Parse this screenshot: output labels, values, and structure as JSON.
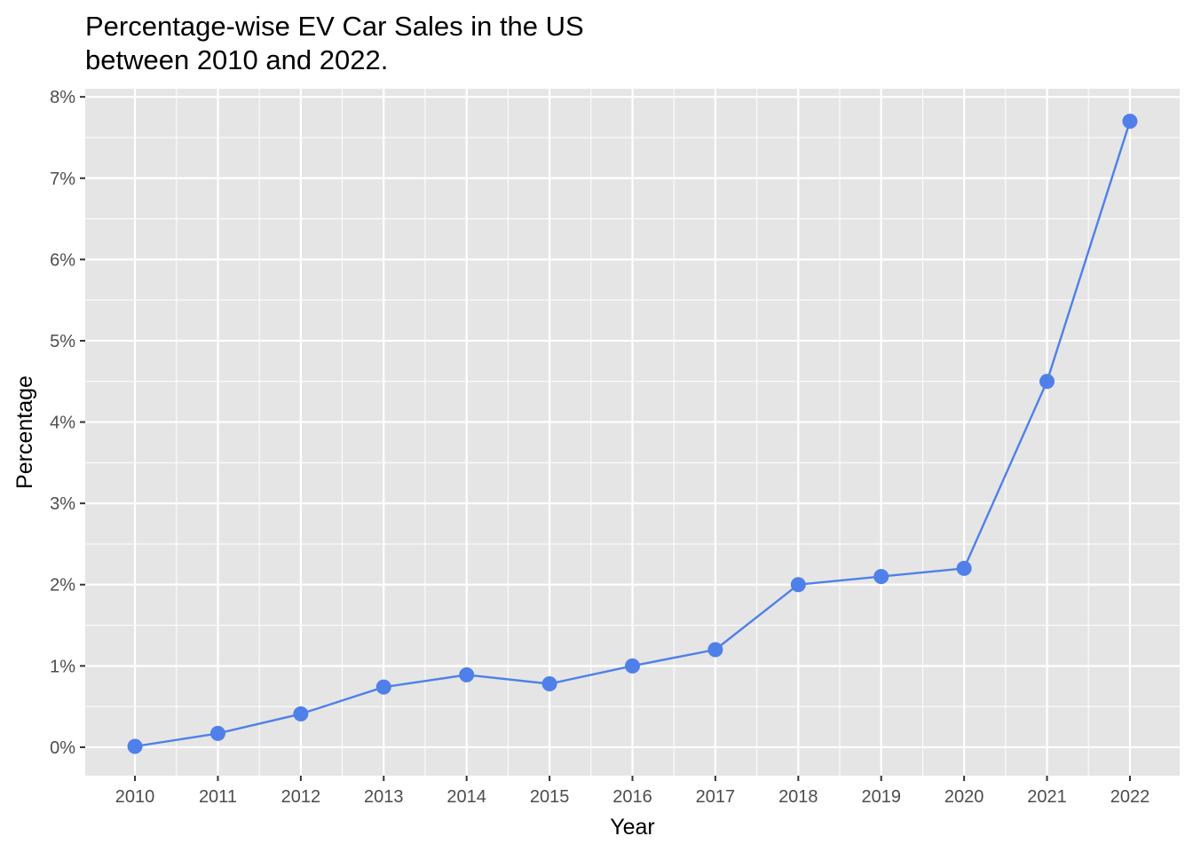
{
  "chart_data": {
    "type": "line",
    "title_lines": [
      "Percentage-wise EV Car Sales in the US",
      "between 2010 and 2022."
    ],
    "xlabel": "Year",
    "ylabel": "Percentage",
    "x": [
      2010,
      2011,
      2012,
      2013,
      2014,
      2015,
      2016,
      2017,
      2018,
      2019,
      2020,
      2021,
      2022
    ],
    "x_tick_labels": [
      "2010",
      "2011",
      "2012",
      "2013",
      "2014",
      "2015",
      "2016",
      "2017",
      "2018",
      "2019",
      "2020",
      "2021",
      "2022"
    ],
    "y_ticks": [
      0,
      1,
      2,
      3,
      4,
      5,
      6,
      7,
      8
    ],
    "y_tick_labels": [
      "0%",
      "1%",
      "2%",
      "3%",
      "4%",
      "5%",
      "6%",
      "7%",
      "8%"
    ],
    "series": [
      {
        "values": [
          0.01,
          0.17,
          0.41,
          0.74,
          0.89,
          0.78,
          1.0,
          1.2,
          2.0,
          2.1,
          2.2,
          4.5,
          7.7
        ]
      }
    ],
    "ylim": [
      -0.35,
      8.1
    ],
    "xlim": [
      2009.4,
      2022.6
    ],
    "grid": true,
    "colors": {
      "series": "#4F80E9",
      "panel": "#E5E5E5",
      "grid": "#FFFFFF"
    }
  }
}
